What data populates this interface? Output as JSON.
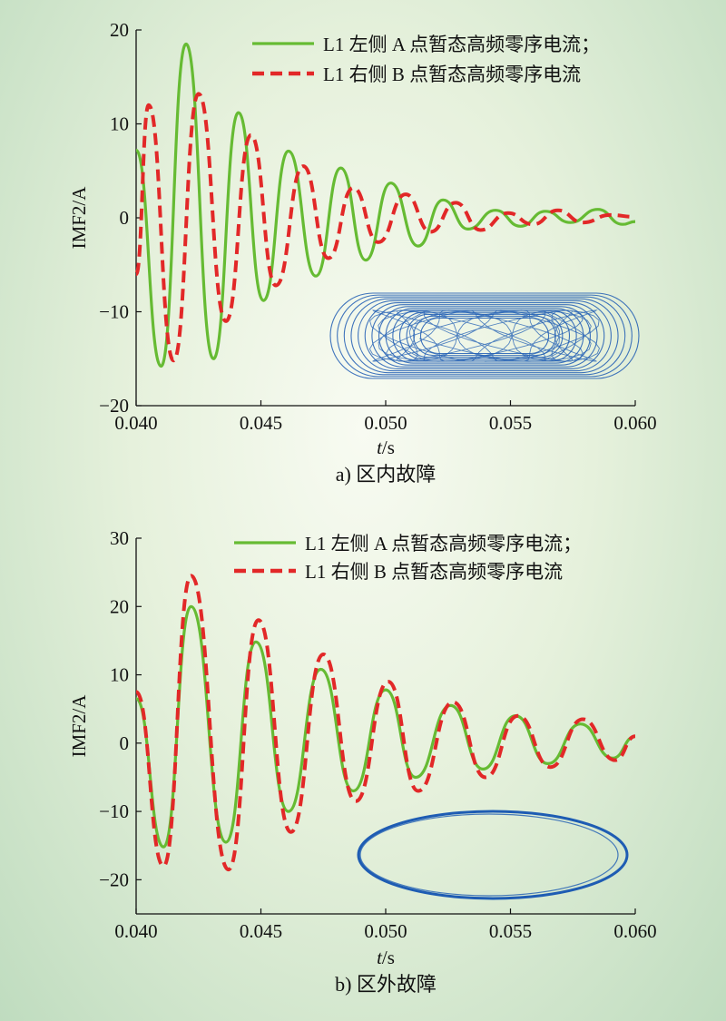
{
  "chart_data": [
    {
      "type": "line",
      "caption": "a) 区内故障",
      "xlabel_italic": "t",
      "xlabel_unit": "/s",
      "ylabel": "IMF2/A",
      "xlim": [
        0.04,
        0.06
      ],
      "ylim": [
        -20,
        20
      ],
      "xticks": [
        "0.040",
        "0.045",
        "0.050",
        "0.055",
        "0.060"
      ],
      "yticks": [
        "20",
        "10",
        "0",
        "−10",
        "−20"
      ],
      "legend_position": "top-right",
      "colors": {
        "series_a": "#66bb33",
        "series_b": "#e22828",
        "inset": "#1e5cb3"
      },
      "series": [
        {
          "name": "L1 左侧 A 点暂态高频零序电流；",
          "style": "solid",
          "x": [
            0.04,
            0.041,
            0.042,
            0.0431,
            0.0441,
            0.0451,
            0.0461,
            0.0472,
            0.0482,
            0.0492,
            0.0502,
            0.0513,
            0.0523,
            0.0533,
            0.0544,
            0.0554,
            0.0564,
            0.0574,
            0.0585,
            0.0595,
            0.06
          ],
          "y": [
            7.2,
            -15.8,
            18.5,
            -15.0,
            11.2,
            -8.8,
            7.1,
            -6.2,
            5.3,
            -4.5,
            3.7,
            -3.0,
            1.9,
            -1.2,
            0.8,
            -0.9,
            0.7,
            -0.5,
            0.9,
            -0.7,
            -0.4
          ]
        },
        {
          "name": "L1 右侧 B 点暂态高频零序电流",
          "style": "dashed",
          "x": [
            0.04,
            0.0405,
            0.0415,
            0.0425,
            0.0436,
            0.0446,
            0.0456,
            0.0467,
            0.0477,
            0.0487,
            0.0497,
            0.0508,
            0.0518,
            0.0528,
            0.0538,
            0.0549,
            0.0559,
            0.0569,
            0.0579,
            0.059,
            0.06
          ],
          "y": [
            -6.0,
            12.0,
            -15.2,
            13.2,
            -11.0,
            8.8,
            -7.2,
            5.5,
            -4.3,
            3.2,
            -2.6,
            2.5,
            -1.5,
            1.6,
            -1.3,
            0.5,
            -0.7,
            0.8,
            -0.5,
            0.3,
            0.1
          ]
        }
      ]
    },
    {
      "type": "line",
      "caption": "b) 区外故障",
      "xlabel_italic": "t",
      "xlabel_unit": "/s",
      "ylabel": "IMF2/A",
      "xlim": [
        0.04,
        0.06
      ],
      "ylim": [
        -25,
        30
      ],
      "xticks": [
        "0.040",
        "0.045",
        "0.050",
        "0.055",
        "0.060"
      ],
      "yticks": [
        "30",
        "20",
        "10",
        "0",
        "−10",
        "−20"
      ],
      "legend_position": "top-right",
      "colors": {
        "series_a": "#66bb33",
        "series_b": "#e22828",
        "inset": "#1e5cb3"
      },
      "series": [
        {
          "name": "L1 左侧 A 点暂态高频零序电流；",
          "style": "solid",
          "x": [
            0.04,
            0.0411,
            0.0422,
            0.0436,
            0.0448,
            0.0461,
            0.0474,
            0.0487,
            0.05,
            0.0512,
            0.0526,
            0.0539,
            0.0552,
            0.0565,
            0.0578,
            0.0591,
            0.06
          ],
          "y": [
            6.5,
            -15.2,
            20.0,
            -14.5,
            14.8,
            -10.0,
            10.8,
            -7.0,
            7.8,
            -5.0,
            5.5,
            -3.8,
            4.0,
            -3.0,
            2.8,
            -2.2,
            1.0
          ]
        },
        {
          "name": "L1 右侧 B 点暂态高频零序电流",
          "style": "dashed",
          "x": [
            0.04,
            0.0411,
            0.0422,
            0.0437,
            0.0449,
            0.0462,
            0.0475,
            0.0488,
            0.0501,
            0.0513,
            0.0527,
            0.054,
            0.0553,
            0.0566,
            0.0579,
            0.0592,
            0.06
          ],
          "y": [
            7.5,
            -18.0,
            24.5,
            -18.5,
            18.0,
            -13.0,
            13.0,
            -8.5,
            9.0,
            -7.0,
            6.0,
            -5.0,
            4.0,
            -3.5,
            3.5,
            -2.5,
            1.0
          ]
        }
      ]
    }
  ]
}
